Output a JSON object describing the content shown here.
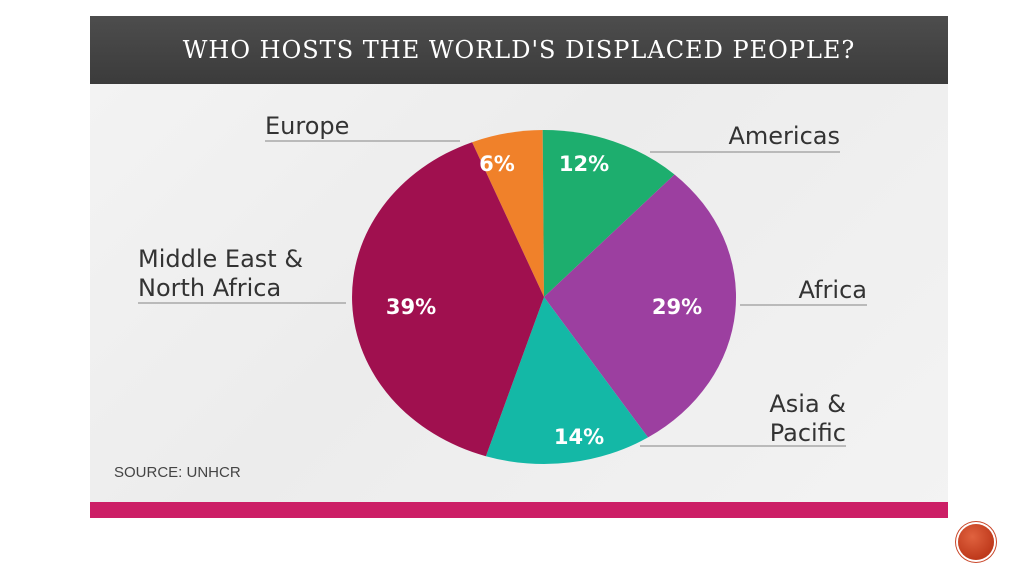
{
  "title": "WHO HOSTS THE WORLD'S DISPLACED PEOPLE?",
  "source": "SOURCE: UNHCR",
  "colors": {
    "title_bar": "#444444",
    "bottom_bar": "#cc1f66",
    "page_button": "#c9472a"
  },
  "chart_data": {
    "type": "pie",
    "title": "WHO HOSTS THE WORLD'S DISPLACED PEOPLE?",
    "slices": [
      {
        "label": "Europe",
        "value": 6,
        "pct_label": "6%",
        "color": "#f0812a"
      },
      {
        "label": "Americas",
        "value": 12,
        "pct_label": "12%",
        "color": "#1dae6e"
      },
      {
        "label": "Africa",
        "value": 29,
        "pct_label": "29%",
        "color": "#9c3fa0"
      },
      {
        "label": "Asia & Pacific",
        "value": 14,
        "pct_label": "14%",
        "color": "#14b8a6"
      },
      {
        "label": "Middle East & North Africa",
        "value": 39,
        "pct_label": "39%",
        "color": "#a0104f"
      }
    ],
    "label_lines": {
      "Europe": [
        "Europe"
      ],
      "Americas": [
        "Americas"
      ],
      "Africa": [
        "Africa"
      ],
      "Asia & Pacific": [
        "Asia &",
        "Pacific"
      ],
      "Middle East & North Africa": [
        "Middle East &",
        "North Africa"
      ]
    }
  }
}
